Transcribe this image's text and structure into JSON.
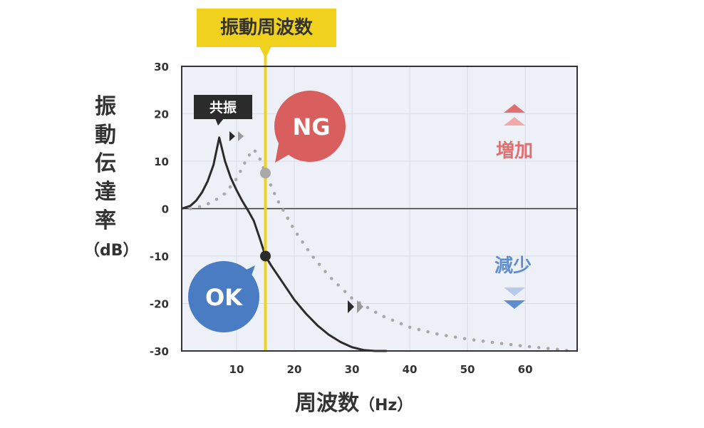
{
  "top_label": "振動周波数",
  "resonance_label": "共振",
  "ng_label": "NG",
  "ok_label": "OK",
  "increase_label": "増加",
  "decrease_label": "減少",
  "colors": {
    "plot_bg": "#eef0f8",
    "grid": "#d8dbe8",
    "axis": "#333333",
    "frequency_line": "#f0d21e",
    "ok_curve": "#2b2b2b",
    "ng_curve": "#a8a8a8",
    "ng_bubble": "#d95f5f",
    "ok_bubble": "#4a7cc4",
    "increase": "#e07070",
    "decrease": "#5f8ed0"
  },
  "chart_data": {
    "type": "line",
    "title": "",
    "ylabel_chars": [
      "振",
      "動",
      "伝",
      "達",
      "率"
    ],
    "ylabel_unit": "（dB）",
    "xlabel": "周波数",
    "xlabel_unit": "（Hz）",
    "xlim": [
      0.5,
      69
    ],
    "ylim": [
      -30,
      30
    ],
    "xticks": [
      10,
      20,
      30,
      40,
      50,
      60
    ],
    "yticks": [
      30,
      20,
      10,
      0,
      -10,
      -20,
      -30
    ],
    "grid": true,
    "vertical_marker_x": 15,
    "series": [
      {
        "style": "solid",
        "x": [
          0.5,
          2,
          3,
          4,
          5,
          6,
          7,
          8,
          9,
          10,
          11,
          12,
          13,
          14,
          15,
          16,
          18,
          20,
          22,
          24,
          26,
          28,
          30,
          32,
          34,
          36
        ],
        "y": [
          0,
          0.6,
          1.7,
          3.4,
          5.8,
          9.2,
          15,
          10,
          6.5,
          3.9,
          1.6,
          -0.4,
          -2.6,
          -6.2,
          -10,
          -12,
          -15.6,
          -19.2,
          -22.1,
          -24.6,
          -26.6,
          -28.1,
          -29.2,
          -29.8,
          -30,
          -30
        ]
      },
      {
        "style": "dotted",
        "x": [
          2,
          4,
          6,
          8,
          10,
          12,
          13,
          14,
          15,
          17,
          20,
          23,
          26,
          30,
          35,
          40,
          45,
          50,
          55,
          60,
          65,
          68
        ],
        "y": [
          0,
          0.5,
          1.5,
          3.2,
          6.3,
          11,
          12.5,
          10.6,
          7.5,
          2,
          -4.5,
          -9.8,
          -14.2,
          -18.9,
          -22.5,
          -25,
          -26.5,
          -27.5,
          -28.3,
          -29,
          -29.6,
          -30
        ]
      }
    ],
    "markers": [
      {
        "series": 0,
        "x": 15,
        "y": -10
      },
      {
        "series": 1,
        "x": 15,
        "y": 7.5
      }
    ]
  }
}
